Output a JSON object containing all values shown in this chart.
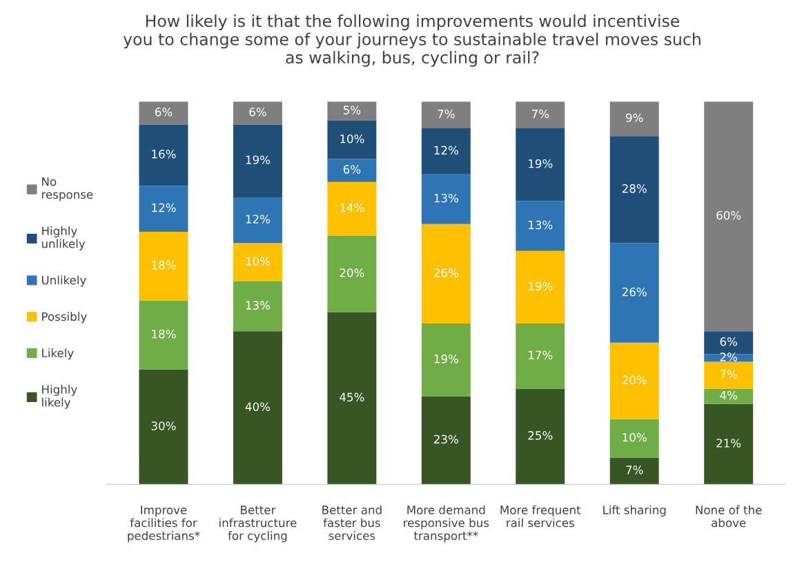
{
  "chart_data": {
    "type": "bar",
    "stacked": true,
    "title": "How likely is it that the following improvements would incentivise you to change some of your journeys to sustainable travel moves such as walking, bus, cycling or rail?",
    "categories": [
      "Improve facilities for pedestrians*",
      "Better infrastructure for cycling",
      "Better and faster bus services",
      "More demand responsive bus transport**",
      "More frequent rail services",
      "Lift sharing",
      "None of the above"
    ],
    "series": [
      {
        "name": "Highly likely",
        "color": "#375623",
        "values": [
          30,
          40,
          45,
          23,
          25,
          7,
          21
        ],
        "value_labels": [
          "30%",
          "40%",
          "45%",
          "23%",
          "25%",
          "7%",
          "21%"
        ]
      },
      {
        "name": "Likely",
        "color": "#70ad47",
        "values": [
          18,
          13,
          20,
          19,
          17,
          10,
          4
        ],
        "value_labels": [
          "18%",
          "13%",
          "20%",
          "19%",
          "17%",
          "10%",
          "4%"
        ]
      },
      {
        "name": "Possibly",
        "color": "#ffc000",
        "values": [
          18,
          10,
          14,
          26,
          19,
          20,
          7
        ],
        "value_labels": [
          "18%",
          "10%",
          "14%",
          "26%",
          "19%",
          "20%",
          "7%"
        ]
      },
      {
        "name": "Unlikely",
        "color": "#2e75b6",
        "values": [
          12,
          12,
          6,
          13,
          13,
          26,
          2
        ],
        "value_labels": [
          "12%",
          "12%",
          "6%",
          "13%",
          "13%",
          "26%",
          "2%"
        ]
      },
      {
        "name": "Highly unlikely",
        "color": "#1f4e79",
        "values": [
          16,
          19,
          10,
          12,
          19,
          28,
          6
        ],
        "value_labels": [
          "16%",
          "19%",
          "10%",
          "12%",
          "19%",
          "28%",
          "6%"
        ]
      },
      {
        "name": "No response",
        "color": "#7f7f7f",
        "values": [
          6,
          6,
          5,
          7,
          7,
          9,
          60
        ],
        "value_labels": [
          "6%",
          "6%",
          "5%",
          "7%",
          "7%",
          "9%",
          "60%"
        ]
      }
    ],
    "legend": "left",
    "grid": false
  }
}
